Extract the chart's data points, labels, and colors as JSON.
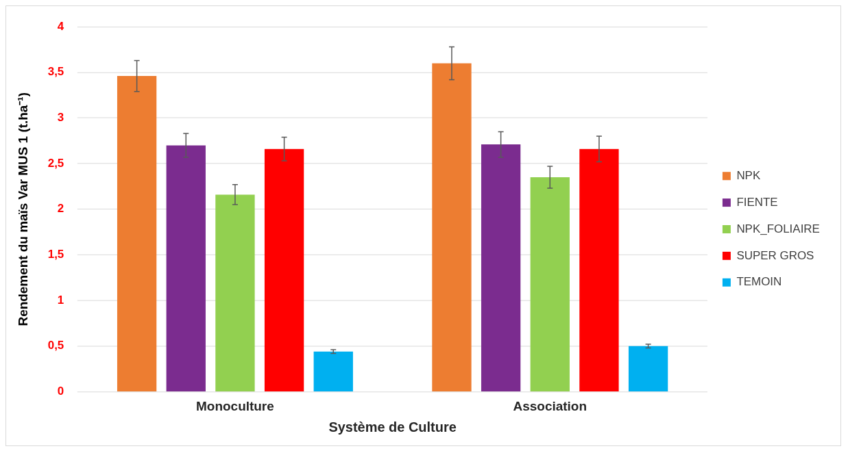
{
  "chart_data": {
    "type": "bar",
    "xlabel": "Système de Culture",
    "ylabel": "Rendement du maïs Var MUS 1 (t.ha⁻¹)",
    "categories": [
      "Monoculture",
      "Association"
    ],
    "series": [
      {
        "name": "NPK",
        "color": "#ed7d31",
        "values": [
          3.46,
          3.6
        ],
        "errors": [
          0.17,
          0.18
        ]
      },
      {
        "name": "FIENTE",
        "color": "#7b2c8f",
        "values": [
          2.7,
          2.71
        ],
        "errors": [
          0.13,
          0.14
        ]
      },
      {
        "name": "NPK_FOLIAIRE",
        "color": "#92d050",
        "values": [
          2.16,
          2.35
        ],
        "errors": [
          0.11,
          0.12
        ]
      },
      {
        "name": "SUPER GROS",
        "color": "#ff0000",
        "values": [
          2.66,
          2.66
        ],
        "errors": [
          0.13,
          0.14
        ]
      },
      {
        "name": "TEMOIN",
        "color": "#00b0f0",
        "values": [
          0.44,
          0.5
        ],
        "errors": [
          0.02,
          0.02
        ]
      }
    ],
    "ylim": [
      0,
      4
    ],
    "yticks": [
      0,
      {
        "value": 0.5,
        "label": "0,5"
      },
      1,
      {
        "value": 1.5,
        "label": "1,5"
      },
      2,
      {
        "value": 2.5,
        "label": "2,5"
      },
      3,
      {
        "value": 3.5,
        "label": "3,5"
      },
      4
    ],
    "grid": "y",
    "legend": "right"
  }
}
